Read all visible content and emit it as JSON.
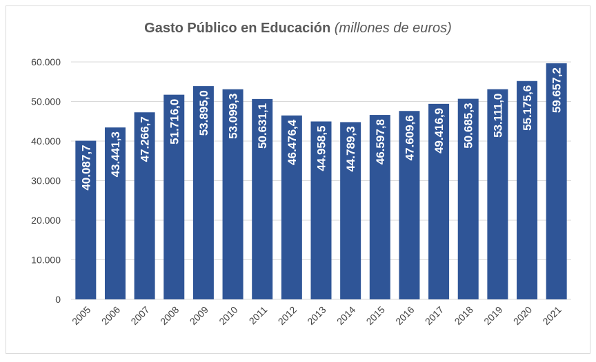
{
  "chart_data": {
    "type": "bar",
    "title": "Gasto Público en Educación",
    "subtitle": "(millones de euros)",
    "xlabel": "",
    "ylabel": "",
    "categories": [
      "2005",
      "2006",
      "2007",
      "2008",
      "2009",
      "2010",
      "2011",
      "2012",
      "2013",
      "2014",
      "2015",
      "2016",
      "2017",
      "2018",
      "2019",
      "2020",
      "2021"
    ],
    "values": [
      40087.7,
      43441.3,
      47266.7,
      51716.0,
      53895.0,
      53099.3,
      50631.1,
      46476.4,
      44958.5,
      44789.3,
      46597.8,
      47609.6,
      49416.9,
      50685.3,
      53111.0,
      55175.6,
      59657.2
    ],
    "data_labels": [
      "40.087,7",
      "43.441,3",
      "47.266,7",
      "51.716,0",
      "53.895,0",
      "53.099,3",
      "50.631,1",
      "46.476,4",
      "44.958,5",
      "44.789,3",
      "46.597,8",
      "47.609,6",
      "49.416,9",
      "50.685,3",
      "53.111,0",
      "55.175,6",
      "59.657,2"
    ],
    "ylim": [
      0,
      60000
    ],
    "yticks": [
      0,
      10000,
      20000,
      30000,
      40000,
      50000,
      60000
    ],
    "ytick_labels": [
      "0",
      "10.000",
      "20.000",
      "30.000",
      "40.000",
      "50.000",
      "60.000"
    ],
    "grid": true,
    "colors": {
      "bar": "#2f5597",
      "grid": "#d9d9d9",
      "text": "#595959",
      "label": "#ffffff"
    }
  }
}
